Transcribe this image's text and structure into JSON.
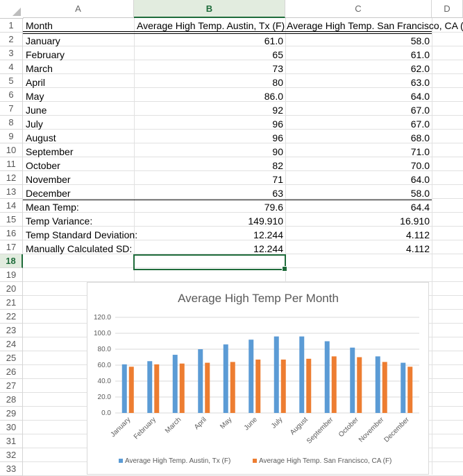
{
  "columns": [
    "A",
    "B",
    "C",
    "D"
  ],
  "selected_column": "B",
  "rows": [
    "1",
    "2",
    "3",
    "4",
    "5",
    "6",
    "7",
    "8",
    "9",
    "10",
    "11",
    "12",
    "13",
    "14",
    "15",
    "16",
    "17",
    "18",
    "19",
    "20",
    "21",
    "22",
    "23",
    "24",
    "25",
    "26",
    "27",
    "28",
    "29",
    "30",
    "31",
    "32",
    "33"
  ],
  "selected_row": "18",
  "header": {
    "a": "Month",
    "b": "Average High Temp. Austin, Tx (F)",
    "c": "Average High Temp. San Francisco, CA (F)"
  },
  "table": [
    {
      "month": "January",
      "austin": "61.0",
      "sf": "58.0"
    },
    {
      "month": "February",
      "austin": "65",
      "sf": "61.0"
    },
    {
      "month": "March",
      "austin": "73",
      "sf": "62.0"
    },
    {
      "month": "April",
      "austin": "80",
      "sf": "63.0"
    },
    {
      "month": "May",
      "austin": "86.0",
      "sf": "64.0"
    },
    {
      "month": "June",
      "austin": "92",
      "sf": "67.0"
    },
    {
      "month": "July",
      "austin": "96",
      "sf": "67.0"
    },
    {
      "month": "August",
      "austin": "96",
      "sf": "68.0"
    },
    {
      "month": "September",
      "austin": "90",
      "sf": "71.0"
    },
    {
      "month": "October",
      "austin": "82",
      "sf": "70.0"
    },
    {
      "month": "November",
      "austin": "71",
      "sf": "64.0"
    },
    {
      "month": "December",
      "austin": "63",
      "sf": "58.0"
    }
  ],
  "stats": [
    {
      "label": "Mean Temp:",
      "austin": "79.6",
      "sf": "64.4"
    },
    {
      "label": "Temp Variance:",
      "austin": "149.910",
      "sf": "16.910"
    },
    {
      "label": "Temp Standard Deviation:",
      "austin": "12.244",
      "sf": "4.112"
    },
    {
      "label": "Manually Calculated SD:",
      "austin": "12.244",
      "sf": "4.112"
    }
  ],
  "colors": {
    "austin": "#5b9bd5",
    "sf": "#ed7d31",
    "selection": "#1e6b3a"
  },
  "chart_data": {
    "type": "bar",
    "title": "Average High Temp Per Month",
    "categories": [
      "January",
      "February",
      "March",
      "April",
      "May",
      "June",
      "July",
      "August",
      "September",
      "October",
      "November",
      "December"
    ],
    "series": [
      {
        "name": "Average High Temp. Austin, Tx (F)",
        "values": [
          61,
          65,
          73,
          80,
          86,
          92,
          96,
          96,
          90,
          82,
          71,
          63
        ]
      },
      {
        "name": "Average High Temp. San Francisco, CA (F)",
        "values": [
          58,
          61,
          62,
          63,
          64,
          67,
          67,
          68,
          71,
          70,
          64,
          58
        ]
      }
    ],
    "y_ticks": [
      "0.0",
      "20.0",
      "40.0",
      "60.0",
      "80.0",
      "100.0",
      "120.0"
    ],
    "ylim": [
      0,
      120
    ],
    "xlabel": "",
    "ylabel": "",
    "grid": true,
    "legend_position": "bottom"
  }
}
